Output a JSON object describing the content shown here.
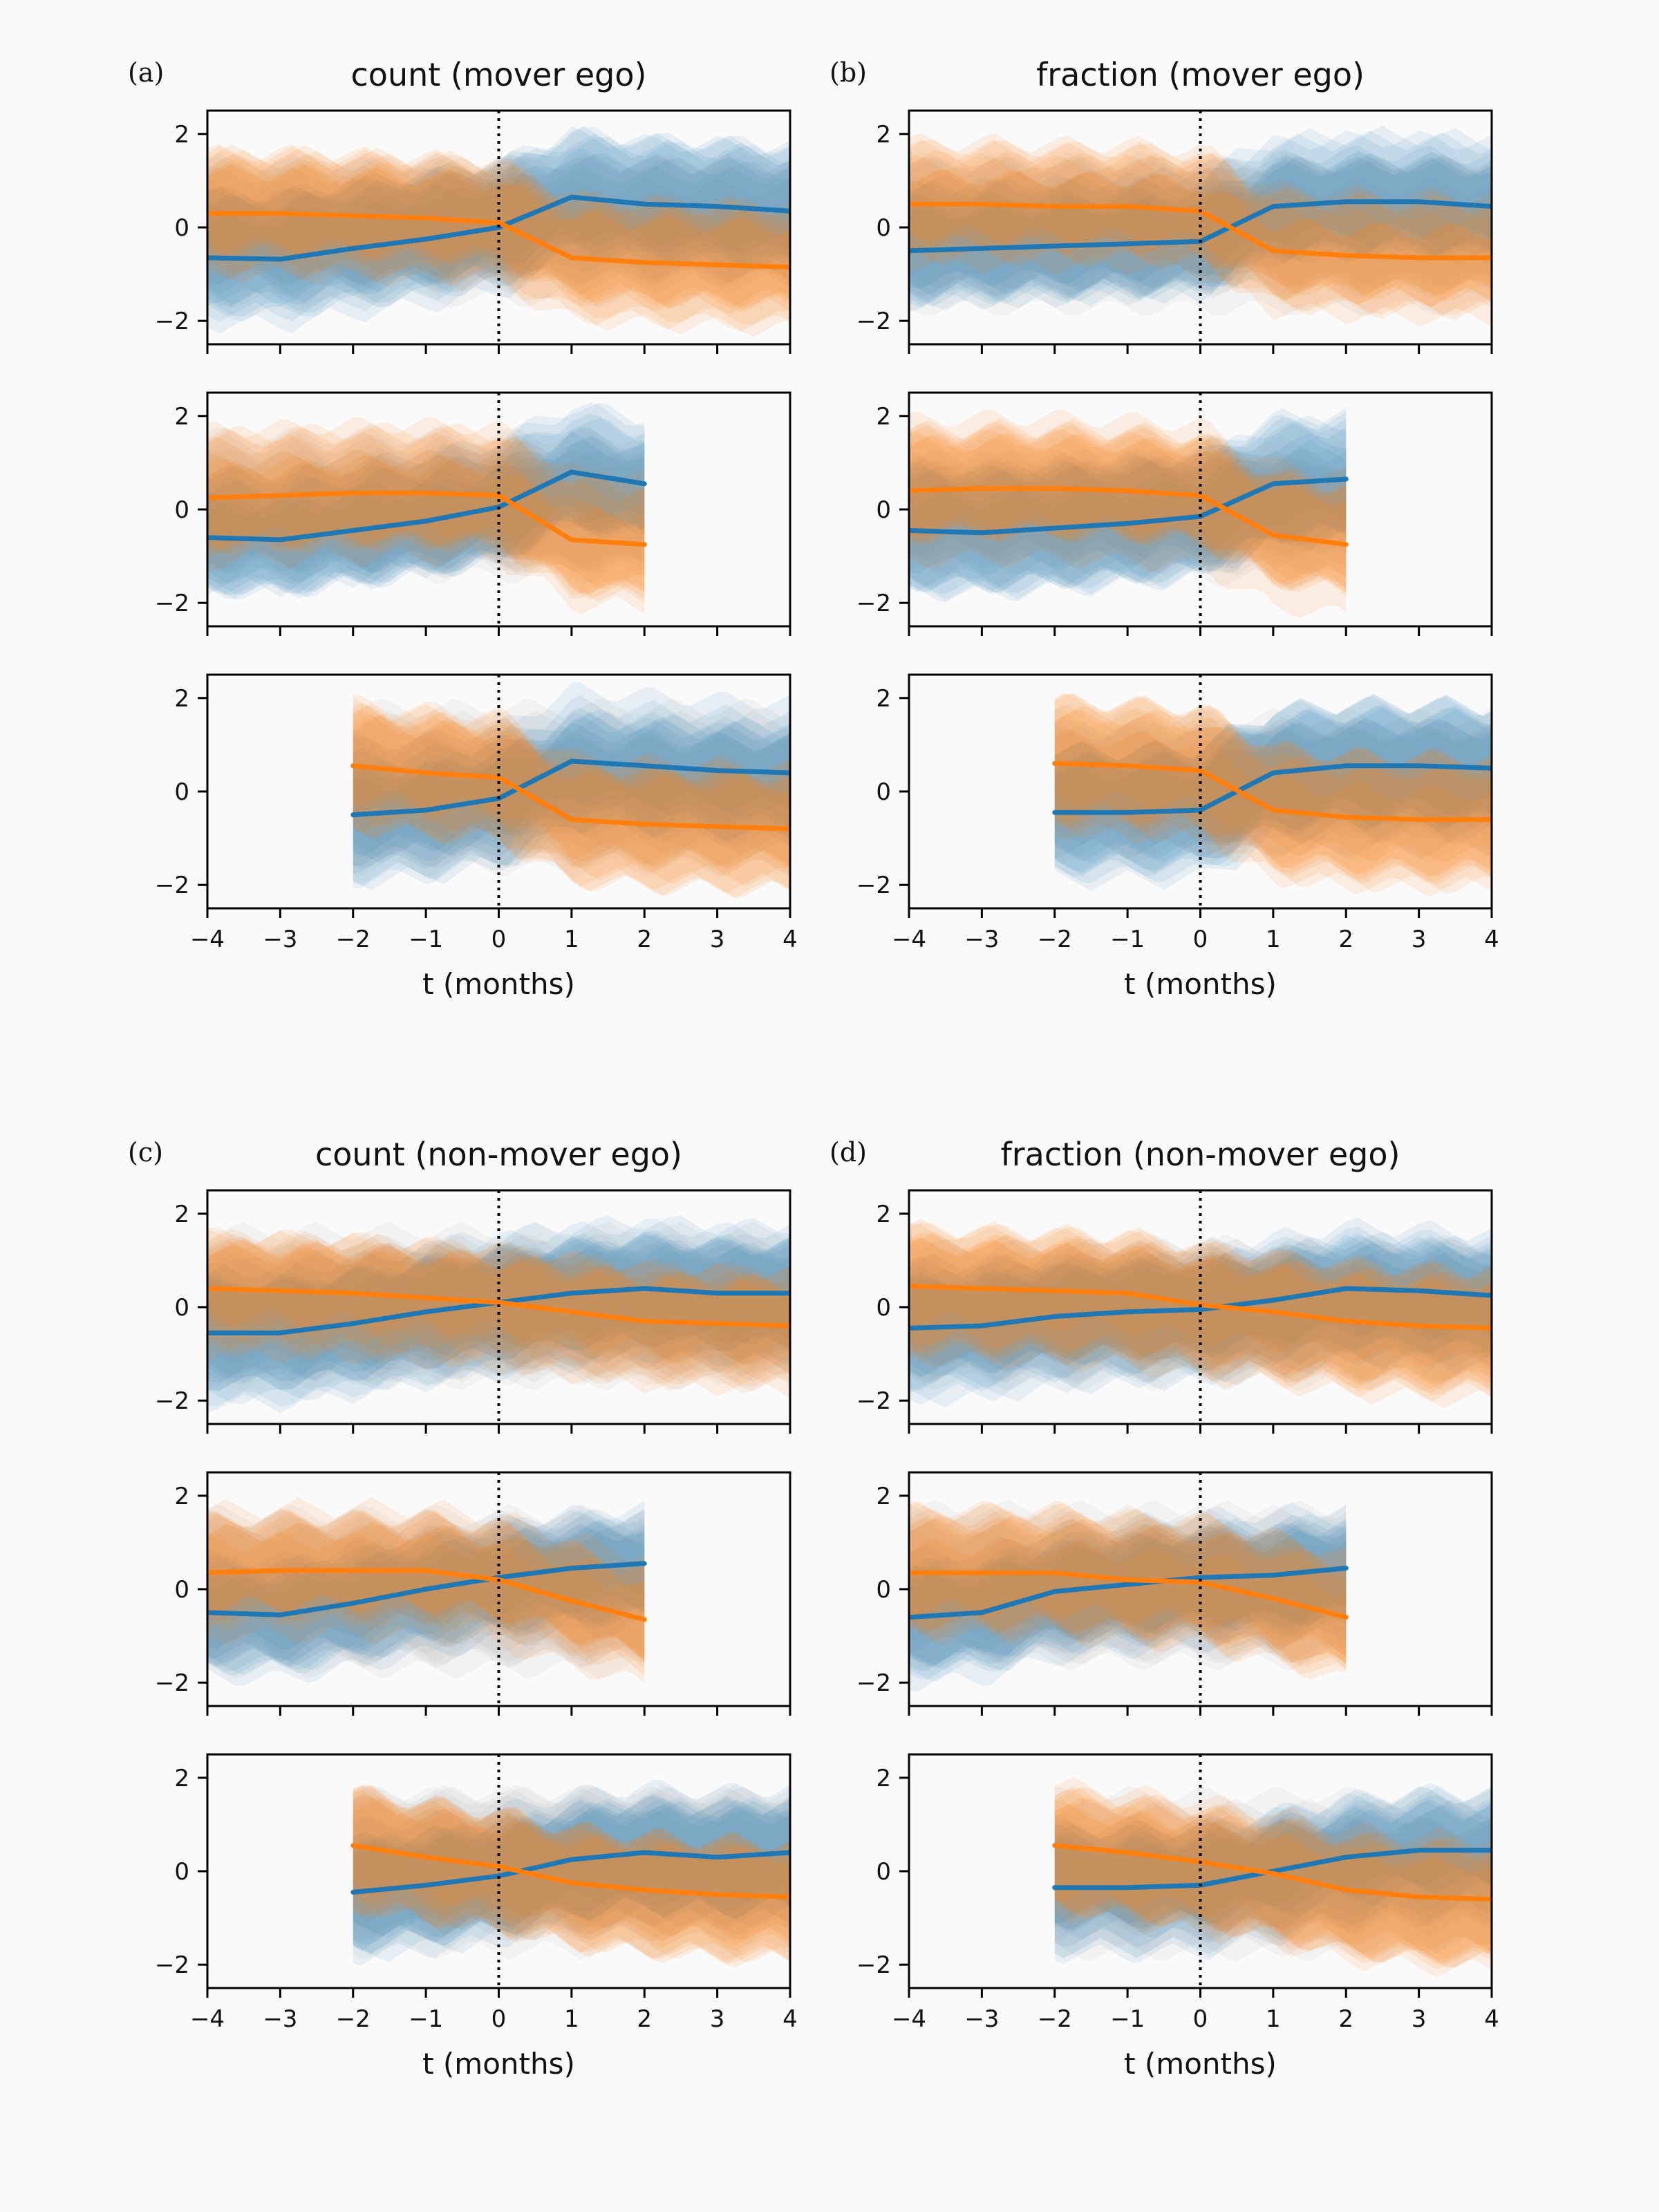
{
  "colors": {
    "blue": "#1f77b4",
    "orange": "#ff7f0e",
    "grey": "#8c8c8c",
    "frame": "#000000",
    "vline": "#000000"
  },
  "chart_data": [
    {
      "type": "line",
      "panel_label": "(a)",
      "title": "count (mover ego)",
      "xlabel": "t (months)",
      "subplots": [
        {
          "xlim": [
            -4,
            4
          ],
          "ylim": [
            -2.5,
            2.5
          ],
          "xticks": [
            "−4",
            "−3",
            "−2",
            "−1",
            "0",
            "1",
            "2",
            "3",
            "4"
          ],
          "yticks": [
            "−2",
            "0",
            "2"
          ],
          "x_range": [
            -4,
            4
          ],
          "series": [
            {
              "color": "blue",
              "x": [
                -4,
                -3,
                -2,
                -1,
                0,
                1,
                2,
                3,
                4
              ],
              "y": [
                -0.65,
                -0.68,
                -0.45,
                -0.25,
                0.0,
                0.65,
                0.5,
                0.45,
                0.35
              ]
            },
            {
              "color": "orange",
              "x": [
                -4,
                -3,
                -2,
                -1,
                0,
                1,
                2,
                3,
                4
              ],
              "y": [
                0.3,
                0.3,
                0.25,
                0.2,
                0.1,
                -0.65,
                -0.75,
                -0.8,
                -0.85
              ]
            }
          ]
        },
        {
          "xlim": [
            -4,
            4
          ],
          "ylim": [
            -2.5,
            2.5
          ],
          "xticks": [
            "−4",
            "−3",
            "−2",
            "−1",
            "0",
            "1",
            "2",
            "3",
            "4"
          ],
          "yticks": [
            "−2",
            "0",
            "2"
          ],
          "x_range": [
            -4,
            2
          ],
          "series": [
            {
              "color": "blue",
              "x": [
                -4,
                -3,
                -2,
                -1,
                0,
                1,
                2
              ],
              "y": [
                -0.6,
                -0.65,
                -0.45,
                -0.25,
                0.05,
                0.8,
                0.55
              ]
            },
            {
              "color": "orange",
              "x": [
                -4,
                -3,
                -2,
                -1,
                0,
                1,
                2
              ],
              "y": [
                0.25,
                0.3,
                0.35,
                0.35,
                0.3,
                -0.65,
                -0.75
              ]
            }
          ]
        },
        {
          "xlim": [
            -4,
            4
          ],
          "ylim": [
            -2.5,
            2.5
          ],
          "xticks": [
            "−4",
            "−3",
            "−2",
            "−1",
            "0",
            "1",
            "2",
            "3",
            "4"
          ],
          "yticks": [
            "−2",
            "0",
            "2"
          ],
          "x_range": [
            -2,
            4
          ],
          "series": [
            {
              "color": "blue",
              "x": [
                -2,
                -1,
                0,
                1,
                2,
                3,
                4
              ],
              "y": [
                -0.5,
                -0.4,
                -0.15,
                0.65,
                0.55,
                0.45,
                0.4
              ]
            },
            {
              "color": "orange",
              "x": [
                -2,
                -1,
                0,
                1,
                2,
                3,
                4
              ],
              "y": [
                0.55,
                0.4,
                0.3,
                -0.6,
                -0.7,
                -0.75,
                -0.8
              ]
            }
          ]
        }
      ]
    },
    {
      "type": "line",
      "panel_label": "(b)",
      "title": "fraction (mover ego)",
      "xlabel": "t (months)",
      "subplots": [
        {
          "xlim": [
            -4,
            4
          ],
          "ylim": [
            -2.5,
            2.5
          ],
          "xticks": [
            "−4",
            "−3",
            "−2",
            "−1",
            "0",
            "1",
            "2",
            "3",
            "4"
          ],
          "yticks": [
            "−2",
            "0",
            "2"
          ],
          "x_range": [
            -4,
            4
          ],
          "series": [
            {
              "color": "blue",
              "x": [
                -4,
                -3,
                -2,
                -1,
                0,
                1,
                2,
                3,
                4
              ],
              "y": [
                -0.5,
                -0.45,
                -0.4,
                -0.35,
                -0.3,
                0.45,
                0.55,
                0.55,
                0.45
              ]
            },
            {
              "color": "orange",
              "x": [
                -4,
                -3,
                -2,
                -1,
                0,
                1,
                2,
                3,
                4
              ],
              "y": [
                0.5,
                0.5,
                0.45,
                0.45,
                0.35,
                -0.5,
                -0.6,
                -0.65,
                -0.65
              ]
            }
          ]
        },
        {
          "xlim": [
            -4,
            4
          ],
          "ylim": [
            -2.5,
            2.5
          ],
          "xticks": [
            "−4",
            "−3",
            "−2",
            "−1",
            "0",
            "1",
            "2",
            "3",
            "4"
          ],
          "yticks": [
            "−2",
            "0",
            "2"
          ],
          "x_range": [
            -4,
            2
          ],
          "series": [
            {
              "color": "blue",
              "x": [
                -4,
                -3,
                -2,
                -1,
                0,
                1,
                2
              ],
              "y": [
                -0.45,
                -0.5,
                -0.4,
                -0.3,
                -0.15,
                0.55,
                0.65
              ]
            },
            {
              "color": "orange",
              "x": [
                -4,
                -3,
                -2,
                -1,
                0,
                1,
                2
              ],
              "y": [
                0.4,
                0.45,
                0.45,
                0.4,
                0.3,
                -0.55,
                -0.75
              ]
            }
          ]
        },
        {
          "xlim": [
            -4,
            4
          ],
          "ylim": [
            -2.5,
            2.5
          ],
          "xticks": [
            "−4",
            "−3",
            "−2",
            "−1",
            "0",
            "1",
            "2",
            "3",
            "4"
          ],
          "yticks": [
            "−2",
            "0",
            "2"
          ],
          "x_range": [
            -2,
            4
          ],
          "series": [
            {
              "color": "blue",
              "x": [
                -2,
                -1,
                0,
                1,
                2,
                3,
                4
              ],
              "y": [
                -0.45,
                -0.45,
                -0.4,
                0.4,
                0.55,
                0.55,
                0.5
              ]
            },
            {
              "color": "orange",
              "x": [
                -2,
                -1,
                0,
                1,
                2,
                3,
                4
              ],
              "y": [
                0.6,
                0.55,
                0.45,
                -0.4,
                -0.55,
                -0.6,
                -0.6
              ]
            }
          ]
        }
      ]
    },
    {
      "type": "line",
      "panel_label": "(c)",
      "title": "count (non-mover ego)",
      "xlabel": "t (months)",
      "subplots": [
        {
          "xlim": [
            -4,
            4
          ],
          "ylim": [
            -2.5,
            2.5
          ],
          "xticks": [
            "−4",
            "−3",
            "−2",
            "−1",
            "0",
            "1",
            "2",
            "3",
            "4"
          ],
          "yticks": [
            "−2",
            "0",
            "2"
          ],
          "x_range": [
            -4,
            4
          ],
          "series": [
            {
              "color": "blue",
              "x": [
                -4,
                -3,
                -2,
                -1,
                0,
                1,
                2,
                3,
                4
              ],
              "y": [
                -0.55,
                -0.55,
                -0.35,
                -0.1,
                0.1,
                0.3,
                0.4,
                0.3,
                0.3
              ]
            },
            {
              "color": "orange",
              "x": [
                -4,
                -3,
                -2,
                -1,
                0,
                1,
                2,
                3,
                4
              ],
              "y": [
                0.4,
                0.35,
                0.3,
                0.2,
                0.1,
                -0.1,
                -0.3,
                -0.35,
                -0.4
              ]
            }
          ]
        },
        {
          "xlim": [
            -4,
            4
          ],
          "ylim": [
            -2.5,
            2.5
          ],
          "xticks": [
            "−4",
            "−3",
            "−2",
            "−1",
            "0",
            "1",
            "2",
            "3",
            "4"
          ],
          "yticks": [
            "−2",
            "0",
            "2"
          ],
          "x_range": [
            -4,
            2
          ],
          "series": [
            {
              "color": "blue",
              "x": [
                -4,
                -3,
                -2,
                -1,
                0,
                1,
                2
              ],
              "y": [
                -0.5,
                -0.55,
                -0.3,
                0.0,
                0.25,
                0.45,
                0.55
              ]
            },
            {
              "color": "orange",
              "x": [
                -4,
                -3,
                -2,
                -1,
                0,
                1,
                2
              ],
              "y": [
                0.35,
                0.4,
                0.4,
                0.4,
                0.2,
                -0.25,
                -0.65
              ]
            }
          ]
        },
        {
          "xlim": [
            -4,
            4
          ],
          "ylim": [
            -2.5,
            2.5
          ],
          "xticks": [
            "−4",
            "−3",
            "−2",
            "−1",
            "0",
            "1",
            "2",
            "3",
            "4"
          ],
          "yticks": [
            "−2",
            "0",
            "2"
          ],
          "x_range": [
            -2,
            4
          ],
          "series": [
            {
              "color": "blue",
              "x": [
                -2,
                -1,
                0,
                1,
                2,
                3,
                4
              ],
              "y": [
                -0.45,
                -0.3,
                -0.1,
                0.25,
                0.4,
                0.3,
                0.4
              ]
            },
            {
              "color": "orange",
              "x": [
                -2,
                -1,
                0,
                1,
                2,
                3,
                4
              ],
              "y": [
                0.55,
                0.3,
                0.1,
                -0.25,
                -0.4,
                -0.5,
                -0.55
              ]
            }
          ]
        }
      ]
    },
    {
      "type": "line",
      "panel_label": "(d)",
      "title": "fraction (non-mover ego)",
      "xlabel": "t (months)",
      "subplots": [
        {
          "xlim": [
            -4,
            4
          ],
          "ylim": [
            -2.5,
            2.5
          ],
          "xticks": [
            "−4",
            "−3",
            "−2",
            "−1",
            "0",
            "1",
            "2",
            "3",
            "4"
          ],
          "yticks": [
            "−2",
            "0",
            "2"
          ],
          "x_range": [
            -4,
            4
          ],
          "series": [
            {
              "color": "blue",
              "x": [
                -4,
                -3,
                -2,
                -1,
                0,
                1,
                2,
                3,
                4
              ],
              "y": [
                -0.45,
                -0.4,
                -0.2,
                -0.1,
                -0.05,
                0.15,
                0.4,
                0.35,
                0.25
              ]
            },
            {
              "color": "orange",
              "x": [
                -4,
                -3,
                -2,
                -1,
                0,
                1,
                2,
                3,
                4
              ],
              "y": [
                0.45,
                0.4,
                0.35,
                0.3,
                0.05,
                -0.1,
                -0.3,
                -0.4,
                -0.45
              ]
            }
          ]
        },
        {
          "xlim": [
            -4,
            4
          ],
          "ylim": [
            -2.5,
            2.5
          ],
          "xticks": [
            "−4",
            "−3",
            "−2",
            "−1",
            "0",
            "1",
            "2",
            "3",
            "4"
          ],
          "yticks": [
            "−2",
            "0",
            "2"
          ],
          "x_range": [
            -4,
            2
          ],
          "series": [
            {
              "color": "blue",
              "x": [
                -4,
                -3,
                -2,
                -1,
                0,
                1,
                2
              ],
              "y": [
                -0.6,
                -0.5,
                -0.05,
                0.1,
                0.25,
                0.3,
                0.45
              ]
            },
            {
              "color": "orange",
              "x": [
                -4,
                -3,
                -2,
                -1,
                0,
                1,
                2
              ],
              "y": [
                0.35,
                0.35,
                0.35,
                0.2,
                0.15,
                -0.2,
                -0.6
              ]
            }
          ]
        },
        {
          "xlim": [
            -4,
            4
          ],
          "ylim": [
            -2.5,
            2.5
          ],
          "xticks": [
            "−4",
            "−3",
            "−2",
            "−1",
            "0",
            "1",
            "2",
            "3",
            "4"
          ],
          "yticks": [
            "−2",
            "0",
            "2"
          ],
          "x_range": [
            -2,
            4
          ],
          "series": [
            {
              "color": "blue",
              "x": [
                -2,
                -1,
                0,
                1,
                2,
                3,
                4
              ],
              "y": [
                -0.35,
                -0.35,
                -0.3,
                0.0,
                0.3,
                0.45,
                0.45
              ]
            },
            {
              "color": "orange",
              "x": [
                -2,
                -1,
                0,
                1,
                2,
                3,
                4
              ],
              "y": [
                0.55,
                0.4,
                0.2,
                -0.05,
                -0.4,
                -0.55,
                -0.6
              ]
            }
          ]
        }
      ]
    }
  ]
}
